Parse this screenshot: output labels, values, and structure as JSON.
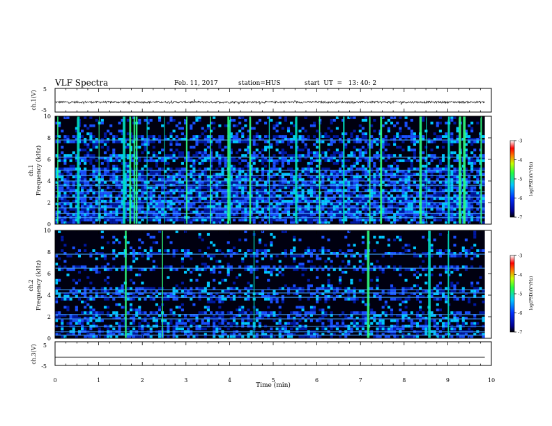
{
  "header": {
    "title": "VLF Spectra",
    "date": "Feb. 11, 2017",
    "station": "station=HUS",
    "start_ut": "start  UT  =   13: 40: 2"
  },
  "chart_data": [
    {
      "type": "line",
      "panel": "ch1-waveform",
      "ylabel": "ch.1(V)",
      "ylim": [
        -5,
        5
      ],
      "yticks": [
        "5",
        "-5"
      ],
      "xlim": [
        0,
        10
      ],
      "description_of_series": "noise trace near -0.8 V with small fluctuations",
      "x_extent": [
        0,
        9.85
      ],
      "baseline": -0.8
    },
    {
      "type": "heatmap",
      "panel": "ch1-spectrogram",
      "ylabel": "ch.1\nFrequency (kHz)",
      "ylim": [
        0,
        10
      ],
      "yticks": [
        "0",
        "2",
        "4",
        "6",
        "8",
        "10"
      ],
      "xlim": [
        0,
        10
      ],
      "x_extent": [
        0,
        9.85
      ],
      "colorbar": {
        "label": "log(PSD)(V²/Hz)",
        "range": [
          -7,
          -3
        ],
        "ticks": [
          "-3",
          "-4",
          "-5",
          "-6",
          "-7"
        ]
      },
      "bright_bands_khz": [
        0.6,
        1.0,
        1.5,
        2.0,
        2.5,
        3.0,
        3.6,
        4.0,
        4.5,
        5.0,
        6.2,
        7.8
      ],
      "broadband_bursts_min": [
        0.05,
        0.5,
        1.0,
        1.55,
        1.7,
        1.8,
        1.85,
        2.1,
        2.5,
        3.0,
        3.55,
        3.95,
        4.0,
        4.45,
        4.9,
        5.5,
        6.05,
        6.6,
        7.2,
        7.45,
        8.35,
        8.5,
        9.0,
        9.25,
        9.35,
        9.75
      ]
    },
    {
      "type": "heatmap",
      "panel": "ch2-spectrogram",
      "ylabel": "ch.2\nFrequency (kHz)",
      "ylim": [
        0,
        10
      ],
      "yticks": [
        "0",
        "2",
        "4",
        "6",
        "8",
        "10"
      ],
      "xlim": [
        0,
        10
      ],
      "x_extent": [
        0,
        9.85
      ],
      "colorbar": {
        "label": "log(PSD)(V²/Hz)",
        "range": [
          -7,
          -3
        ],
        "ticks": [
          "-3",
          "-4",
          "-5",
          "-6",
          "-7"
        ]
      },
      "bright_bands_khz": [
        0.3,
        0.6,
        1.1,
        1.8,
        2.2,
        3.8,
        4.2,
        4.5,
        6.5,
        7.8
      ],
      "broadband_bursts_min": [
        1.6,
        2.45,
        4.55,
        7.15,
        8.55,
        9.0
      ]
    },
    {
      "type": "line",
      "panel": "ch3-waveform",
      "ylabel": "ch.3(V)",
      "ylim": [
        -5,
        5
      ],
      "yticks": [
        "5",
        "-5"
      ],
      "xlim": [
        0,
        10
      ],
      "x_extent": [
        0,
        9.85
      ],
      "baseline": -1.5
    }
  ],
  "xaxis": {
    "label": "Time (min)",
    "ticks": [
      "0",
      "1",
      "2",
      "3",
      "4",
      "5",
      "6",
      "7",
      "8",
      "9",
      "10"
    ]
  },
  "colors": {
    "background": "#ffffff",
    "spectro_low": "#000020",
    "spectro_mid": "#1a40ff",
    "spectro_high": "#30ff80"
  }
}
